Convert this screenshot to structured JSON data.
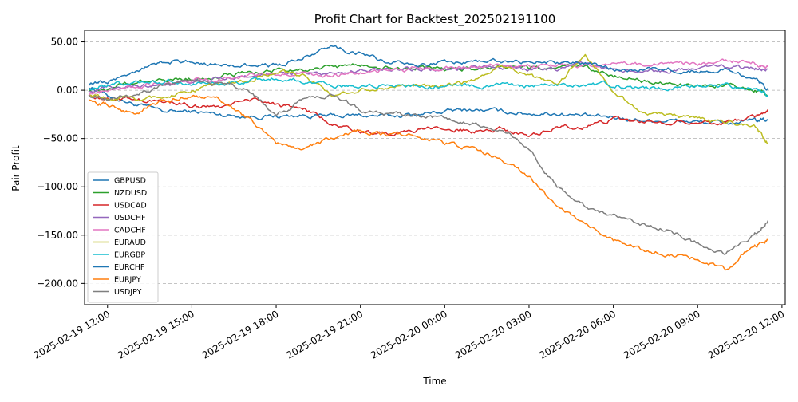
{
  "chart_data": {
    "type": "line",
    "title": "Profit Chart for Backtest_202502191100",
    "xlabel": "Time",
    "ylabel": "Pair Profit",
    "x_ticks": [
      "2025-02-19 12:00",
      "2025-02-19 15:00",
      "2025-02-19 18:00",
      "2025-02-19 21:00",
      "2025-02-20 00:00",
      "2025-02-20 03:00",
      "2025-02-20 06:00",
      "2025-02-20 09:00",
      "2025-02-20 12:00"
    ],
    "x_range": [
      "2025-02-19 11:11",
      "2025-02-20 12:07"
    ],
    "y_ticks": [
      "50.00",
      "0.00",
      "−50.00",
      "−100.00",
      "−150.00",
      "−200.00"
    ],
    "y_tick_values": [
      50,
      0,
      -50,
      -100,
      -150,
      -200
    ],
    "ylim": [
      -222,
      62
    ],
    "grid": "horizontal dashed",
    "legend_position": "center-left",
    "x": [
      "2025-02-19 11:20",
      "2025-02-19 12:00",
      "2025-02-19 13:00",
      "2025-02-19 14:00",
      "2025-02-19 15:00",
      "2025-02-19 16:00",
      "2025-02-19 17:00",
      "2025-02-19 18:00",
      "2025-02-19 19:00",
      "2025-02-19 20:00",
      "2025-02-19 21:00",
      "2025-02-19 22:00",
      "2025-02-19 23:00",
      "2025-02-20 00:00",
      "2025-02-20 01:00",
      "2025-02-20 02:00",
      "2025-02-20 03:00",
      "2025-02-20 04:00",
      "2025-02-20 05:00",
      "2025-02-20 06:00",
      "2025-02-20 07:00",
      "2025-02-20 08:00",
      "2025-02-20 09:00",
      "2025-02-20 10:00",
      "2025-02-20 11:00",
      "2025-02-20 11:30"
    ],
    "series": [
      {
        "name": "GBPUSD",
        "color": "#1f77b4",
        "values": [
          4,
          -5,
          -15,
          -22,
          -22,
          -25,
          -27,
          -27,
          -26,
          -27,
          -26,
          -27,
          -25,
          -22,
          -20,
          -22,
          -24,
          -24,
          -27,
          -28,
          -31,
          -31,
          -33,
          -34,
          -32,
          -31
        ]
      },
      {
        "name": "NZDUSD",
        "color": "#2ca02c",
        "values": [
          0,
          2,
          8,
          12,
          12,
          15,
          18,
          20,
          22,
          24,
          26,
          24,
          22,
          22,
          22,
          24,
          22,
          22,
          25,
          15,
          10,
          6,
          4,
          5,
          0,
          -5
        ]
      },
      {
        "name": "USDCAD",
        "color": "#d62728",
        "values": [
          -5,
          -8,
          -10,
          -12,
          -15,
          -18,
          -8,
          -15,
          -20,
          -35,
          -42,
          -45,
          -42,
          -40,
          -42,
          -40,
          -47,
          -38,
          -38,
          -30,
          -33,
          -32,
          -33,
          -33,
          -28,
          -20
        ]
      },
      {
        "name": "USDCHF",
        "color": "#9467bd",
        "values": [
          0,
          3,
          5,
          7,
          10,
          12,
          14,
          16,
          17,
          18,
          20,
          21,
          22,
          22,
          22,
          23,
          22,
          22,
          28,
          20,
          18,
          20,
          22,
          25,
          22,
          22
        ]
      },
      {
        "name": "CADCHF",
        "color": "#e377c2",
        "values": [
          -5,
          0,
          5,
          8,
          10,
          12,
          15,
          17,
          18,
          15,
          18,
          20,
          22,
          22,
          25,
          25,
          25,
          25,
          27,
          27,
          27,
          27,
          28,
          30,
          28,
          24
        ]
      },
      {
        "name": "EURAUD",
        "color": "#bcbd22",
        "values": [
          -5,
          -8,
          -10,
          -5,
          0,
          5,
          10,
          20,
          15,
          -5,
          0,
          5,
          5,
          5,
          10,
          25,
          15,
          5,
          38,
          0,
          -25,
          -25,
          -30,
          -35,
          -35,
          -55
        ]
      },
      {
        "name": "EURGBP",
        "color": "#17becf",
        "values": [
          2,
          5,
          8,
          10,
          8,
          6,
          10,
          12,
          10,
          5,
          5,
          5,
          5,
          5,
          5,
          5,
          5,
          5,
          5,
          5,
          2,
          2,
          5,
          5,
          2,
          -5
        ]
      },
      {
        "name": "EURCHF",
        "color": "#1f77b4",
        "values": [
          5,
          10,
          20,
          28,
          30,
          25,
          25,
          25,
          35,
          45,
          38,
          30,
          25,
          28,
          28,
          30,
          30,
          28,
          28,
          22,
          22,
          22,
          20,
          22,
          10,
          2
        ]
      },
      {
        "name": "EURJPY",
        "color": "#ff7f0e",
        "values": [
          -10,
          -15,
          -25,
          -10,
          -5,
          -10,
          -30,
          -55,
          -60,
          -50,
          -42,
          -45,
          -47,
          -55,
          -60,
          -70,
          -90,
          -120,
          -140,
          -155,
          -165,
          -170,
          -175,
          -185,
          -160,
          -155
        ]
      },
      {
        "name": "USDJPY",
        "color": "#7f7f7f",
        "values": [
          -5,
          -10,
          -5,
          5,
          10,
          5,
          0,
          -25,
          -10,
          -5,
          -20,
          -25,
          -25,
          -30,
          -35,
          -40,
          -60,
          -100,
          -120,
          -130,
          -140,
          -145,
          -160,
          -170,
          -150,
          -135
        ]
      }
    ]
  }
}
